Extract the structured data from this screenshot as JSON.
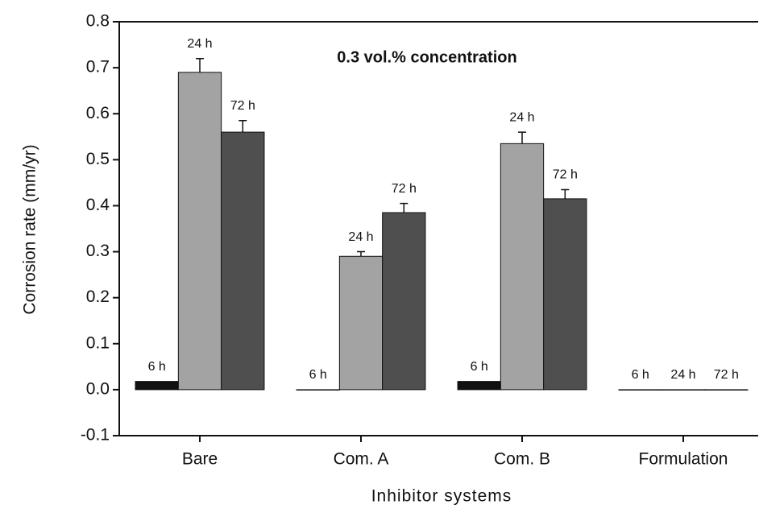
{
  "chart_data": {
    "type": "bar",
    "annotation": "0.3 vol.% concentration",
    "y_label": "Corrosion rate (mm/yr)",
    "x_label": "Inhibitor systems",
    "categories": [
      "Bare",
      "Com. A",
      "Com. B",
      "Formulation"
    ],
    "series": [
      {
        "name": "6 h",
        "color": "#111111",
        "values": [
          0.018,
          0.0,
          0.018,
          0.0
        ],
        "errors": [
          null,
          null,
          null,
          null
        ]
      },
      {
        "name": "24 h",
        "color": "#a3a3a3",
        "values": [
          0.69,
          0.29,
          0.535,
          0.0
        ],
        "errors": [
          0.03,
          0.01,
          0.025,
          null
        ]
      },
      {
        "name": "72 h",
        "color": "#4f4f4f",
        "values": [
          0.56,
          0.385,
          0.415,
          0.0
        ],
        "errors": [
          0.025,
          0.02,
          0.02,
          null
        ]
      }
    ],
    "ylim": [
      -0.1,
      0.8
    ],
    "yticks": [
      -0.1,
      0.0,
      0.1,
      0.2,
      0.3,
      0.4,
      0.5,
      0.6,
      0.7,
      0.8
    ]
  }
}
